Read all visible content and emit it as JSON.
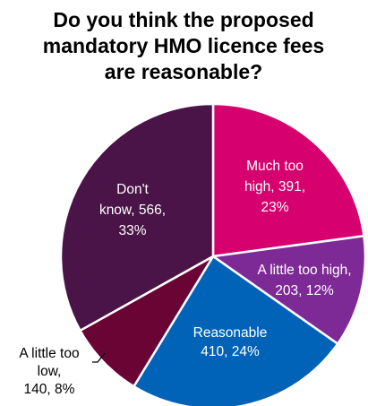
{
  "chart_data": {
    "type": "pie",
    "title_lines": [
      "Do you think the proposed",
      "mandatory HMO licence fees",
      "are reasonable?"
    ],
    "start_angle_deg": 0,
    "direction": "clockwise",
    "slices": [
      {
        "name": "Much too high",
        "value": 391,
        "percent": 23,
        "color": "#D6006E",
        "label_lines": [
          "Much too",
          "high, 391,",
          "23%"
        ],
        "label_color": "#FFFFFF"
      },
      {
        "name": "A little too high",
        "value": 203,
        "percent": 12,
        "color": "#7E2A96",
        "label_lines": [
          "A little too high,",
          "203, 12%"
        ],
        "label_color": "#FFFFFF"
      },
      {
        "name": "Reasonable",
        "value": 410,
        "percent": 24,
        "color": "#0063B8",
        "label_lines": [
          "Reasonable",
          "410, 24%"
        ],
        "label_color": "#FFFFFF"
      },
      {
        "name": "A little too low",
        "value": 140,
        "percent": 8,
        "color": "#6A0435",
        "label_lines": [
          "A little too",
          "low,",
          "140, 8%"
        ],
        "label_color": "#000000"
      },
      {
        "name": "Don't know",
        "value": 566,
        "percent": 33,
        "color": "#4A1448",
        "label_lines": [
          "Don't",
          "know, 566,",
          "33%"
        ],
        "label_color": "#FFFFFF"
      }
    ]
  }
}
